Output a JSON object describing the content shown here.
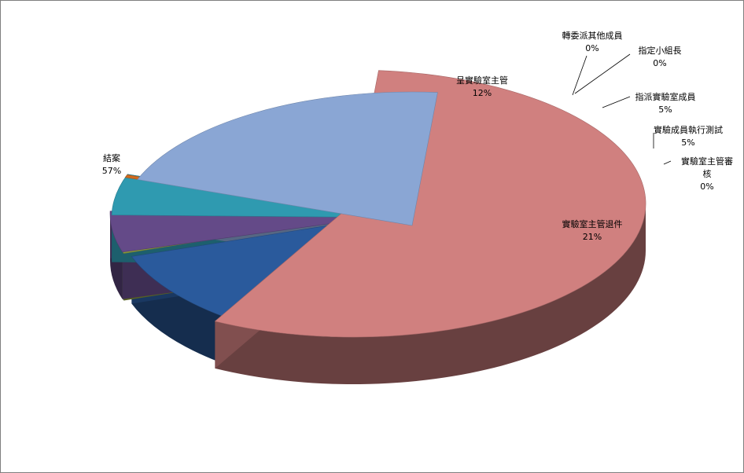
{
  "chart_data": {
    "type": "pie",
    "title": "",
    "style": "3d-exploded",
    "legend": "none",
    "slices": [
      {
        "name": "結案",
        "value": 57,
        "label_pct": "57%",
        "color": "#d0807f"
      },
      {
        "name": "呈實驗室主管",
        "value": 12,
        "label_pct": "12%",
        "color": "#2a5a9c"
      },
      {
        "name": "轉委派其他成員",
        "value": 0,
        "label_pct": "0%",
        "color": "#8a9a3a"
      },
      {
        "name": "指定小組長",
        "value": 0,
        "label_pct": "0%",
        "color": "#7aa03a"
      },
      {
        "name": "指派實驗室成員",
        "value": 5,
        "label_pct": "5%",
        "color": "#644a88"
      },
      {
        "name": "實驗成員執行測試",
        "value": 5,
        "label_pct": "5%",
        "color": "#2f9ab0"
      },
      {
        "name": "實驗室主管審核",
        "value": 0,
        "label_pct": "0%",
        "color": "#d06a1e"
      },
      {
        "name": "實驗室主管退件",
        "value": 21,
        "label_pct": "21%",
        "color": "#8aa6d4"
      }
    ]
  }
}
